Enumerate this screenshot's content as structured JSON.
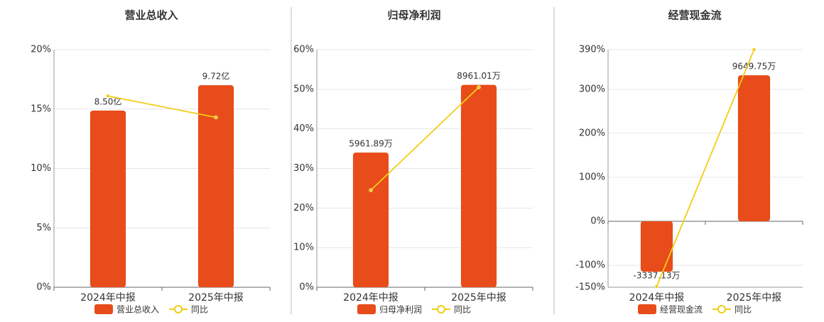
{
  "chart_data": [
    {
      "type": "bar-line",
      "title": "营业总收入",
      "categories": [
        "2024年中报",
        "2025年中报"
      ],
      "series": [
        {
          "name": "营业总收入",
          "color": "#e84c1a",
          "axis": "y2",
          "values": [
            8.5,
            9.72
          ],
          "value_labels": [
            "8.50亿",
            "9.72亿"
          ]
        },
        {
          "name": "同比",
          "color": "#f2cd16",
          "values": [
            16.1,
            14.3
          ]
        }
      ],
      "ylim": [
        0,
        20
      ],
      "yticks": [
        {
          "value": 0,
          "label": "0%"
        },
        {
          "value": 5,
          "label": "5%"
        },
        {
          "value": 10,
          "label": "10%"
        },
        {
          "value": 15,
          "label": "15%"
        },
        {
          "value": 20,
          "label": "20%"
        }
      ],
      "y2lim": [
        0,
        11.43
      ]
    },
    {
      "type": "bar-line",
      "title": "归母净利润",
      "categories": [
        "2024年中报",
        "2025年中报"
      ],
      "series": [
        {
          "name": "归母净利润",
          "color": "#e84c1a",
          "axis": "y2",
          "values": [
            5961.89,
            8961.01
          ],
          "value_labels": [
            "5961.89万",
            "8961.01万"
          ]
        },
        {
          "name": "同比",
          "color": "#f2cd16",
          "values": [
            24.5,
            50.5
          ]
        }
      ],
      "ylim": [
        0,
        60
      ],
      "yticks": [
        {
          "value": 0,
          "label": "0%"
        },
        {
          "value": 10,
          "label": "10%"
        },
        {
          "value": 20,
          "label": "20%"
        },
        {
          "value": 30,
          "label": "30%"
        },
        {
          "value": 40,
          "label": "40%"
        },
        {
          "value": 50,
          "label": "50%"
        },
        {
          "value": 60,
          "label": "60%"
        }
      ],
      "y2lim": [
        0,
        10520
      ]
    },
    {
      "type": "bar-line",
      "title": "经营现金流",
      "categories": [
        "2024年中报",
        "2025年中报"
      ],
      "series": [
        {
          "name": "经营现金流",
          "color": "#e84c1a",
          "axis": "y2",
          "values": [
            -3337.13,
            9649.75
          ],
          "value_labels": [
            "-3337.13万",
            "9649.75万"
          ]
        },
        {
          "name": "同比",
          "color": "#f2cd16",
          "values": [
            -148,
            390
          ]
        }
      ],
      "ylim": [
        -150,
        390
      ],
      "yticks": [
        {
          "value": -150,
          "label": "-150%"
        },
        {
          "value": -100,
          "label": "-100%"
        },
        {
          "value": 0,
          "label": "0%"
        },
        {
          "value": 100,
          "label": "100%"
        },
        {
          "value": 200,
          "label": "200%"
        },
        {
          "value": 300,
          "label": "300%"
        },
        {
          "value": 390,
          "label": "390%"
        }
      ],
      "y2lim": [
        -4360,
        11340
      ]
    }
  ]
}
